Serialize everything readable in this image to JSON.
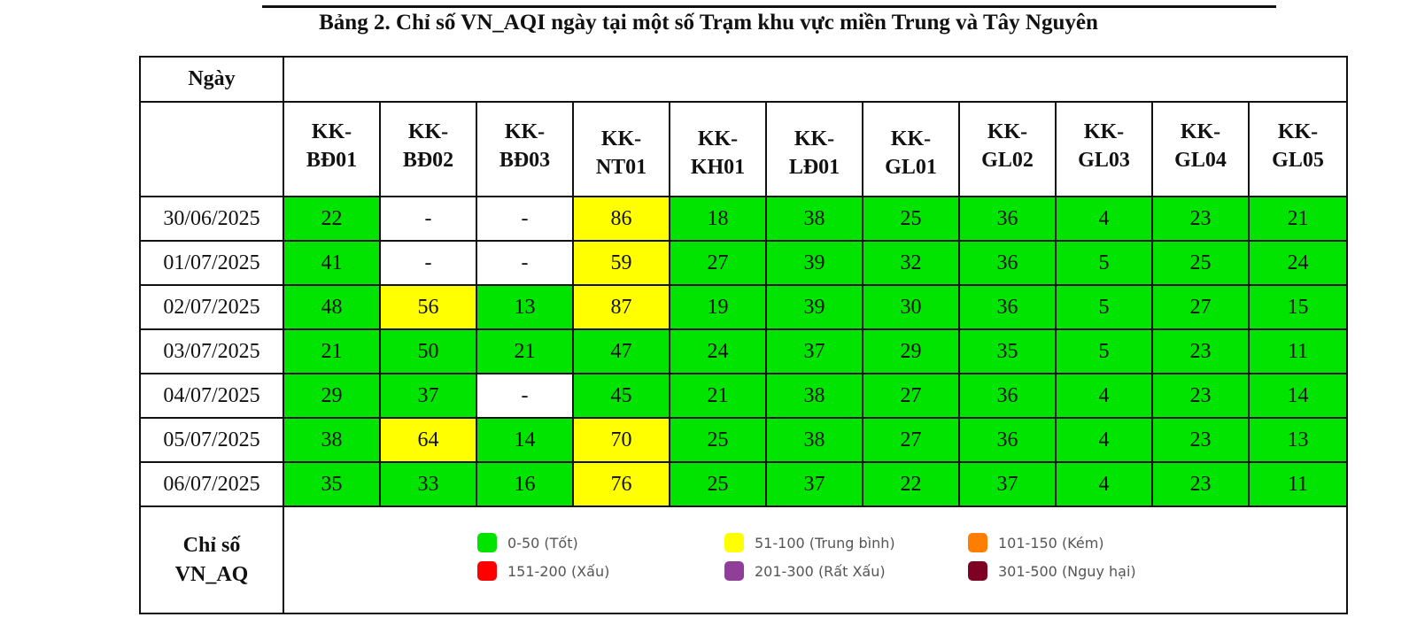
{
  "title": "Bảng 2. Chỉ số VN_AQI ngày tại một số Trạm khu vực miền Trung và Tây Nguyên",
  "date_header": "Ngày",
  "stations": [
    [
      "KK-",
      "BĐ01"
    ],
    [
      "KK-",
      "BĐ02"
    ],
    [
      "KK-",
      "BĐ03"
    ],
    [
      "KK-",
      "NT01"
    ],
    [
      "KK-",
      "KH01"
    ],
    [
      "KK-",
      "LĐ01"
    ],
    [
      "KK-",
      "GL01"
    ],
    [
      "KK-",
      "GL02"
    ],
    [
      "KK-",
      "GL03"
    ],
    [
      "KK-",
      "GL04"
    ],
    [
      "KK-",
      "GL05"
    ]
  ],
  "rows": [
    {
      "date": "30/06/2025",
      "values": [
        "22",
        "-",
        "-",
        "86",
        "18",
        "38",
        "25",
        "36",
        "4",
        "23",
        "21"
      ]
    },
    {
      "date": "01/07/2025",
      "values": [
        "41",
        "-",
        "-",
        "59",
        "27",
        "39",
        "32",
        "36",
        "5",
        "25",
        "24"
      ]
    },
    {
      "date": "02/07/2025",
      "values": [
        "48",
        "56",
        "13",
        "87",
        "19",
        "39",
        "30",
        "36",
        "5",
        "27",
        "15"
      ]
    },
    {
      "date": "03/07/2025",
      "values": [
        "21",
        "50",
        "21",
        "47",
        "24",
        "37",
        "29",
        "35",
        "5",
        "23",
        "11"
      ]
    },
    {
      "date": "04/07/2025",
      "values": [
        "29",
        "37",
        "-",
        "45",
        "21",
        "38",
        "27",
        "36",
        "4",
        "23",
        "14"
      ]
    },
    {
      "date": "05/07/2025",
      "values": [
        "38",
        "64",
        "14",
        "70",
        "25",
        "38",
        "27",
        "36",
        "4",
        "23",
        "13"
      ]
    },
    {
      "date": "06/07/2025",
      "values": [
        "35",
        "33",
        "16",
        "76",
        "25",
        "37",
        "22",
        "37",
        "4",
        "23",
        "11"
      ]
    }
  ],
  "legend_label": [
    "Chỉ số",
    "VN_AQ"
  ],
  "legend": [
    {
      "label": "0-50 (Tốt)",
      "color": "#00e400"
    },
    {
      "label": "51-100 (Trung bình)",
      "color": "#ffff00"
    },
    {
      "label": "101-150 (Kém)",
      "color": "#ff7e00"
    },
    {
      "label": "151-200 (Xấu)",
      "color": "#ff0000"
    },
    {
      "label": "201-300 (Rất Xấu)",
      "color": "#8f3f97"
    },
    {
      "label": "301-500 (Nguy hại)",
      "color": "#7e0023"
    }
  ],
  "colors": {
    "good": "#00e400",
    "moderate": "#ffff00",
    "none": "#ffffff"
  }
}
